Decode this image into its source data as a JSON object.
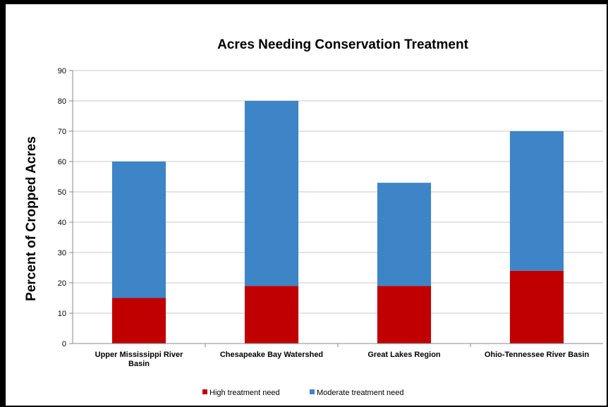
{
  "chart_data": {
    "type": "bar",
    "stacked": true,
    "title": "Acres Needing Conservation Treatment",
    "xlabel": "",
    "ylabel": "Percent of Cropped Acres",
    "ylim": [
      0,
      90
    ],
    "yticks": [
      0,
      10,
      20,
      30,
      40,
      50,
      60,
      70,
      80,
      90
    ],
    "grid": true,
    "legend_position": "bottom",
    "categories": [
      [
        "Upper Mississippi River",
        "Basin"
      ],
      [
        "Chesapeake Bay Watershed"
      ],
      [
        "Great Lakes Region"
      ],
      [
        "Ohio-Tennessee River Basin"
      ]
    ],
    "series": [
      {
        "name": "High treatment need",
        "color": "#c00000",
        "values": [
          15,
          19,
          19,
          24
        ]
      },
      {
        "name": "Moderate treatment need",
        "color": "#3d85c6",
        "values": [
          45,
          61,
          34,
          46
        ]
      }
    ]
  }
}
